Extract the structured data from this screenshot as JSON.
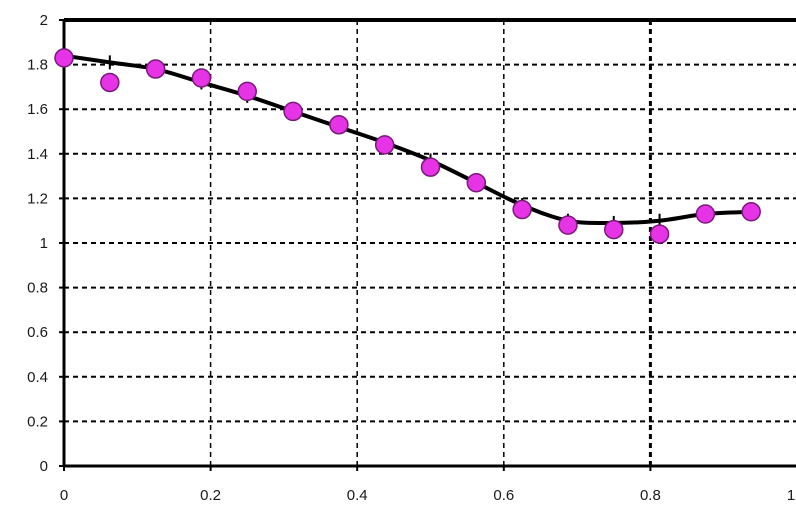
{
  "chart_data": {
    "type": "scatter",
    "title": "",
    "xlabel": "",
    "ylabel": "",
    "xlim": [
      0,
      1
    ],
    "ylim": [
      0,
      2
    ],
    "grid": true,
    "x_ticks": [
      "0",
      "0.2",
      "0.4",
      "0.6",
      "0.8",
      "1"
    ],
    "y_ticks": [
      "0",
      "0.2",
      "0.4",
      "0.6",
      "0.8",
      "1",
      "1.2",
      "1.4",
      "1.6",
      "1.8",
      "2"
    ],
    "x_tick_values": [
      0,
      0.2,
      0.4,
      0.6,
      0.8,
      1.0
    ],
    "y_tick_values": [
      0,
      0.2,
      0.4,
      0.6,
      0.8,
      1.0,
      1.2,
      1.4,
      1.6,
      1.8,
      2.0
    ],
    "series": [
      {
        "kind": "scatter",
        "color": "#e633e6",
        "x": [
          0.0,
          0.0625,
          0.125,
          0.1875,
          0.25,
          0.3125,
          0.375,
          0.4375,
          0.5,
          0.5625,
          0.625,
          0.6875,
          0.75,
          0.8125,
          0.875,
          0.9375
        ],
        "y": [
          1.83,
          1.72,
          1.78,
          1.74,
          1.68,
          1.59,
          1.53,
          1.44,
          1.34,
          1.27,
          1.15,
          1.08,
          1.06,
          1.04,
          1.13,
          1.14
        ]
      },
      {
        "kind": "line",
        "color": "#000000",
        "x": [
          0.0,
          0.0625,
          0.125,
          0.1875,
          0.25,
          0.3125,
          0.375,
          0.4375,
          0.5,
          0.5625,
          0.625,
          0.6875,
          0.75,
          0.8125,
          0.875,
          0.9375
        ],
        "y": [
          1.84,
          1.81,
          1.78,
          1.72,
          1.66,
          1.59,
          1.52,
          1.45,
          1.37,
          1.27,
          1.17,
          1.1,
          1.09,
          1.1,
          1.13,
          1.14
        ]
      }
    ]
  }
}
